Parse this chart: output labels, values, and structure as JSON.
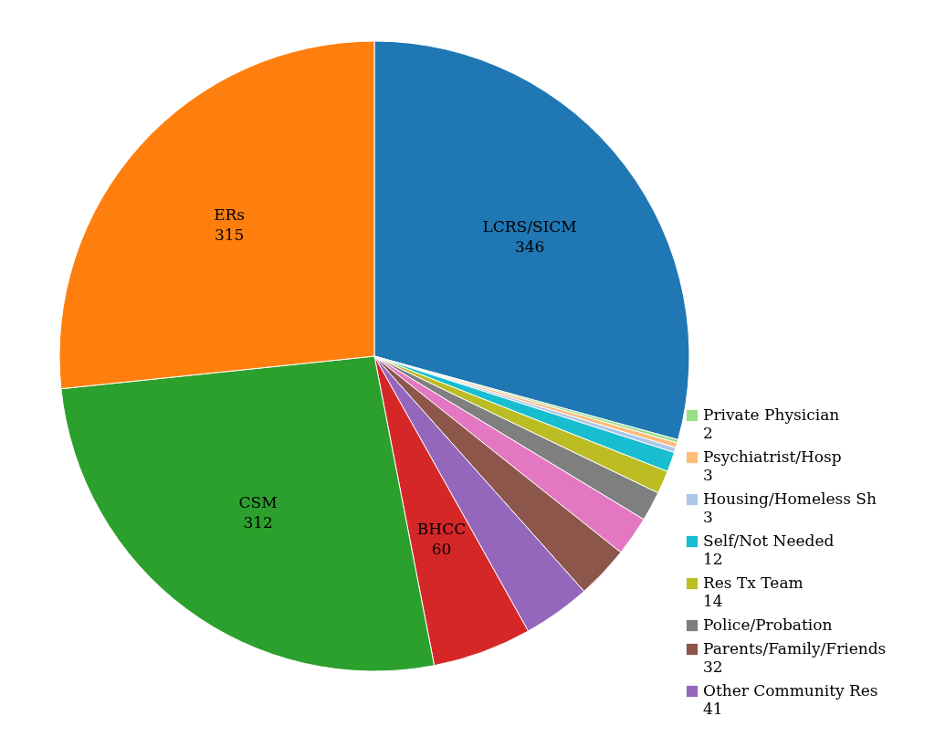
{
  "chart_data": {
    "type": "pie",
    "legend": "bottom right",
    "categories": [
      "LCRS/SICM",
      "Private Physician",
      "Psychiatrist/Hosp",
      "Housing/Homeless Sh",
      "Self/Not Needed",
      "Res Tx Team",
      "Police/Probation",
      null,
      "Parents/Family/Friends",
      "Other Community Res",
      "BHCC",
      "CSM",
      "ERs"
    ],
    "values": [
      346,
      2,
      3,
      3,
      12,
      14,
      18,
      24,
      32,
      41,
      60,
      312,
      315
    ],
    "value_labels": [
      "346",
      "2",
      "3",
      "3",
      "12",
      "14",
      null,
      null,
      "32",
      "41",
      "60",
      "312",
      "315"
    ],
    "colors": [
      "#1f77b4",
      "#98df8a",
      "#ffbb78",
      "#aec7e8",
      "#17becf",
      "#bcbd22",
      "#7f7f7f",
      "#e377c2",
      "#8c564b",
      "#9467bd",
      "#d62728",
      "#2ca02c",
      "#ff7f0e"
    ]
  }
}
